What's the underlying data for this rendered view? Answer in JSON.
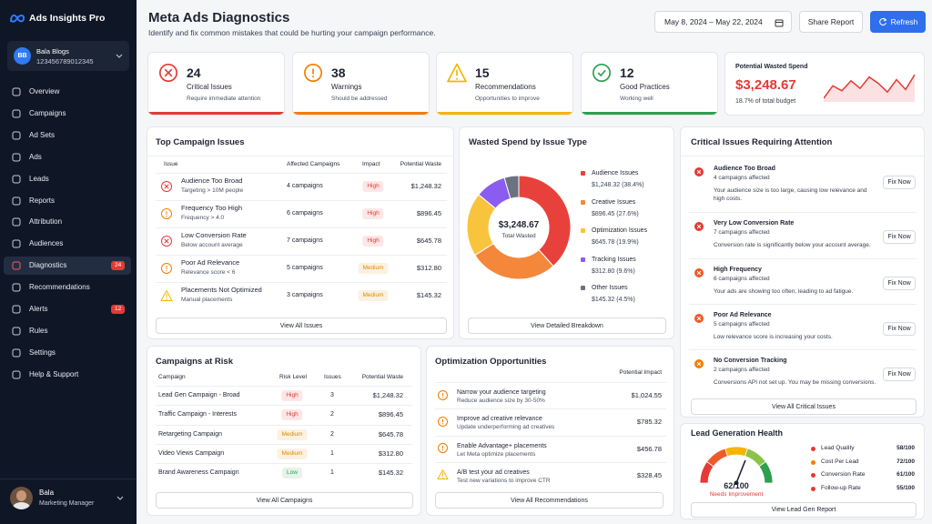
{
  "app": {
    "name": "Ads Insights Pro"
  },
  "account": {
    "initials": "BB",
    "name": "Bala Blogs",
    "id": "123456789012345"
  },
  "nav": [
    {
      "label": "Overview"
    },
    {
      "label": "Campaigns"
    },
    {
      "label": "Ad Sets"
    },
    {
      "label": "Ads"
    },
    {
      "label": "Leads"
    },
    {
      "label": "Reports"
    },
    {
      "label": "Attribution"
    },
    {
      "label": "Audiences"
    },
    {
      "label": "Diagnostics",
      "badge": 24,
      "active": true
    },
    {
      "label": "Recommendations"
    },
    {
      "label": "Alerts",
      "badge": 12
    },
    {
      "label": "Rules"
    },
    {
      "label": "Settings"
    },
    {
      "label": "Help & Support"
    }
  ],
  "user": {
    "name": "Bala",
    "role": "Marketing Manager"
  },
  "header": {
    "title": "Meta Ads Diagnostics",
    "subtitle": "Identify and fix common mistakes that could be hurting your campaign performance.",
    "date_range": "May 8, 2024 – May 22, 2024",
    "share": "Share Report",
    "refresh": "Refresh"
  },
  "kpis": [
    {
      "value": 24,
      "label": "Critical Issues",
      "sub": "Require immediate attention",
      "color": "#e53935",
      "icon": "x"
    },
    {
      "value": 38,
      "label": "Warnings",
      "sub": "Should be addressed",
      "color": "#f57c00",
      "icon": "!"
    },
    {
      "value": 15,
      "label": "Recommendations",
      "sub": "Opportunities to improve",
      "color": "#f5b400",
      "icon": "tri"
    },
    {
      "value": 12,
      "label": "Good Practices",
      "sub": "Working well",
      "color": "#2e9e4f",
      "icon": "check"
    }
  ],
  "wasted": {
    "label": "Potential Wasted Spend",
    "value": "$3,248.67",
    "sub": "18.7% of total budget",
    "color": "#e53935",
    "trend": [
      30,
      40,
      36,
      44,
      38,
      47,
      42,
      35,
      45,
      37,
      49
    ]
  },
  "top_issues": {
    "title": "Top Campaign Issues",
    "headers": [
      "Issue",
      "Affected Campaigns",
      "Impact",
      "Potential Waste"
    ],
    "rows": [
      {
        "issue": "Audience Too Broad",
        "detail": "Targeting > 10M people",
        "campaigns": "4 campaigns",
        "impact": "High",
        "waste": "$1,248.32",
        "icon": "x",
        "icon_color": "#e53935",
        "badge_color": "#e53935"
      },
      {
        "issue": "Frequency Too High",
        "detail": "Frequency > 4.0",
        "campaigns": "6 campaigns",
        "impact": "High",
        "waste": "$896.45",
        "icon": "!",
        "icon_color": "#f57c00",
        "badge_color": "#e53935"
      },
      {
        "issue": "Low Conversion Rate",
        "detail": "Below account average",
        "campaigns": "7 campaigns",
        "impact": "High",
        "waste": "$645.78",
        "icon": "x",
        "icon_color": "#e53935",
        "badge_color": "#e53935"
      },
      {
        "issue": "Poor Ad Relevance",
        "detail": "Relevance score < 6",
        "campaigns": "5 campaigns",
        "impact": "Medium",
        "waste": "$312.80",
        "icon": "!",
        "icon_color": "#f57c00",
        "badge_color": "#e08a00"
      },
      {
        "issue": "Placements Not Optimized",
        "detail": "Manual placements",
        "campaigns": "3 campaigns",
        "impact": "Medium",
        "waste": "$145.32",
        "icon": "tri",
        "icon_color": "#f5b400",
        "badge_color": "#e08a00"
      }
    ],
    "button": "View All Issues"
  },
  "donut": {
    "title": "Wasted Spend by Issue Type",
    "center_value": "$3,248.67",
    "center_label": "Total Wasted",
    "segments": [
      {
        "name": "Audience Issues",
        "value": 38.4,
        "label": "$1,248.32 (38.4%)",
        "color": "#e8413b"
      },
      {
        "name": "Creative Issues",
        "value": 27.6,
        "label": "$896.45 (27.6%)",
        "color": "#f5873a"
      },
      {
        "name": "Optimization Issues",
        "value": 19.9,
        "label": "$645.78 (19.9%)",
        "color": "#f8c43d"
      },
      {
        "name": "Tracking Issues",
        "value": 9.6,
        "label": "$312.80 (9.6%)",
        "color": "#8b5cf0"
      },
      {
        "name": "Other Issues",
        "value": 4.5,
        "label": "$145.32 (4.5%)",
        "color": "#6b7280"
      }
    ],
    "button": "View Detailed Breakdown"
  },
  "critical": {
    "title": "Critical Issues Requiring Attention",
    "items": [
      {
        "title": "Audience Too Broad",
        "count": "4 campaigns affected",
        "desc": "Your audience size is too large, causing low relevance and high costs.",
        "action": "Fix Now",
        "color": "#e53935"
      },
      {
        "title": "Very Low Conversion Rate",
        "count": "7 campaigns affected",
        "desc": "Conversion rate is significantly below your account average.",
        "action": "Fix Now",
        "color": "#e53935"
      },
      {
        "title": "High Frequency",
        "count": "6 campaigns affected",
        "desc": "Your ads are showing too often, leading to ad fatigue.",
        "action": "Fix Now",
        "color": "#f05a28"
      },
      {
        "title": "Poor Ad Relevance",
        "count": "5 campaigns affected",
        "desc": "Low relevance score is increasing your costs.",
        "action": "Fix Now",
        "color": "#f05a28"
      },
      {
        "title": "No Conversion Tracking",
        "count": "2 campaigns affected",
        "desc": "Conversions API not set up. You may be missing conversions.",
        "action": "Fix Now",
        "color": "#f57c00"
      }
    ],
    "button": "View All Critical Issues"
  },
  "risk": {
    "title": "Campaigns at Risk",
    "headers": [
      "Campaign",
      "Risk Level",
      "Issues",
      "Potential Waste"
    ],
    "rows": [
      {
        "campaign": "Lead Gen Campaign - Broad",
        "level": "High",
        "issues": 3,
        "waste": "$1,248.32",
        "color": "#e53935"
      },
      {
        "campaign": "Traffic Campaign - Interests",
        "level": "High",
        "issues": 2,
        "waste": "$896.45",
        "color": "#e53935"
      },
      {
        "campaign": "Retargeting Campaign",
        "level": "Medium",
        "issues": 2,
        "waste": "$645.78",
        "color": "#e08a00"
      },
      {
        "campaign": "Video Views Campaign",
        "level": "Medium",
        "issues": 1,
        "waste": "$312.80",
        "color": "#e08a00"
      },
      {
        "campaign": "Brand Awareness Campaign",
        "level": "Low",
        "issues": 1,
        "waste": "$145.32",
        "color": "#2e9e4f"
      }
    ],
    "button": "View All Campaigns"
  },
  "optimization": {
    "title": "Optimization Opportunities",
    "header": "Potential Impact",
    "items": [
      {
        "title": "Narrow your audience targeting",
        "desc": "Reduce audience size by 30-50%",
        "amount": "$1,024.55",
        "icon": "!",
        "color": "#f57c00"
      },
      {
        "title": "Improve ad creative relevance",
        "desc": "Update underperforming ad creatives",
        "amount": "$785.32",
        "icon": "!",
        "color": "#f57c00"
      },
      {
        "title": "Enable Advantage+ placements",
        "desc": "Let Meta optimize placements",
        "amount": "$456.78",
        "icon": "!",
        "color": "#f57c00"
      },
      {
        "title": "A/B test your ad creatives",
        "desc": "Test new variations to improve CTR",
        "amount": "$328.45",
        "icon": "tri",
        "color": "#f5b400"
      }
    ],
    "button": "View All Recommendations"
  },
  "lead": {
    "title": "Lead Generation Health",
    "score": {
      "value": 62,
      "label": "62/100"
    },
    "score_max": 100,
    "status": "Needs Improvement",
    "status_color": "#e53935",
    "metrics": [
      {
        "name": "Lead Quality",
        "value": "58/100",
        "color": "#e53935"
      },
      {
        "name": "Cost Per Lead",
        "value": "72/100",
        "color": "#f57c00"
      },
      {
        "name": "Conversion Rate",
        "value": "61/100",
        "color": "#e53935"
      },
      {
        "name": "Follow-up Rate",
        "value": "55/100",
        "color": "#e53935"
      }
    ],
    "button": "View Lead Gen Report"
  }
}
